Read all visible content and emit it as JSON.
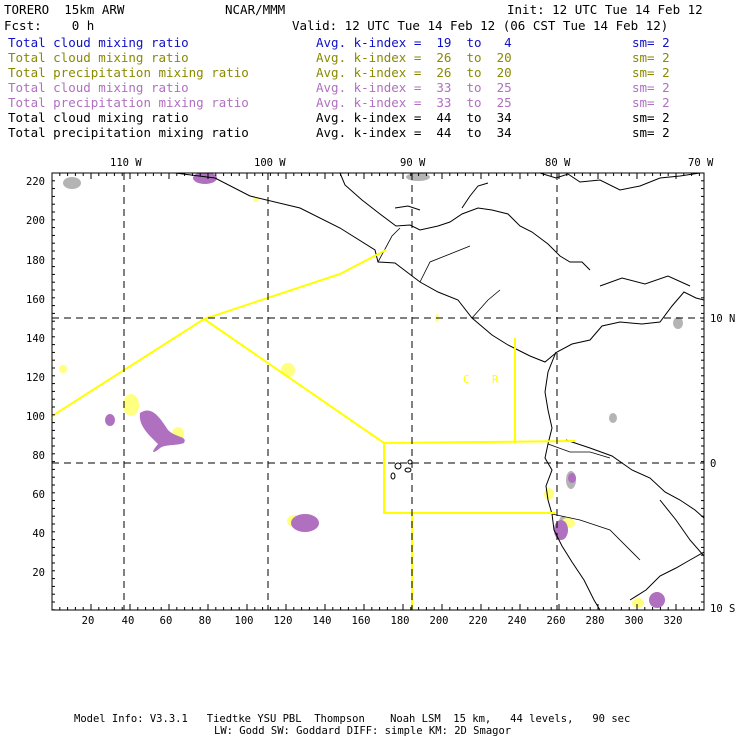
{
  "header": {
    "model": "TORERO  15km ARW",
    "org": "NCAR/MMM",
    "init": "Init: 12 UTC Tue 14 Feb 12",
    "fcst": "Fcst:    0 h",
    "valid": "Valid: 12 UTC Tue 14 Feb 12 (06 CST Tue 14 Feb 12)"
  },
  "fields": [
    {
      "name": "Total cloud mixing ratio",
      "k": "Avg. k-index =  19  to   4",
      "sm": "sm= 2",
      "color": "#1010c8"
    },
    {
      "name": "Total cloud mixing ratio",
      "k": "Avg. k-index =  26  to  20",
      "sm": "sm= 2",
      "color": "#8a8a00"
    },
    {
      "name": "Total precipitation mixing ratio",
      "k": "Avg. k-index =  26  to  20",
      "sm": "sm= 2",
      "color": "#8a8a00"
    },
    {
      "name": "Total cloud mixing ratio",
      "k": "Avg. k-index =  33  to  25",
      "sm": "sm= 2",
      "color": "#b070c0"
    },
    {
      "name": "Total precipitation mixing ratio",
      "k": "Avg. k-index =  33  to  25",
      "sm": "sm= 2",
      "color": "#b070c0"
    },
    {
      "name": "Total cloud mixing ratio",
      "k": "Avg. k-index =  44  to  34",
      "sm": "sm= 2",
      "color": "#000000"
    },
    {
      "name": "Total precipitation mixing ratio",
      "k": "Avg. k-index =  44  to  34",
      "sm": "sm= 2",
      "color": "#000000"
    }
  ],
  "axes": {
    "lon_labels": [
      "110 W",
      "100 W",
      "90 W",
      "80 W",
      "70 W"
    ],
    "lat_labels": [
      "10 N",
      "0",
      "10 S"
    ],
    "y_ticks": [
      "220",
      "200",
      "180",
      "160",
      "140",
      "120",
      "100",
      "80",
      "60",
      "40",
      "20"
    ],
    "x_ticks": [
      "20",
      "40",
      "60",
      "80",
      "100",
      "120",
      "140",
      "160",
      "180",
      "200",
      "220",
      "240",
      "260",
      "280",
      "300",
      "320"
    ]
  },
  "map_labels": {
    "c": "C",
    "r": "R"
  },
  "colors": {
    "domain_lines": "#ffff00",
    "gray": "#b4b4b4",
    "purple": "#b070c0",
    "yellow": "#ffff80"
  },
  "footer": {
    "line1": "Model Info: V3.3.1   Tiedtke YSU PBL  Thompson    Noah LSM  15 km,   44 levels,   90 sec",
    "line2": "LW: Godd SW: Goddard DIFF: simple KM: 2D Smagor"
  }
}
